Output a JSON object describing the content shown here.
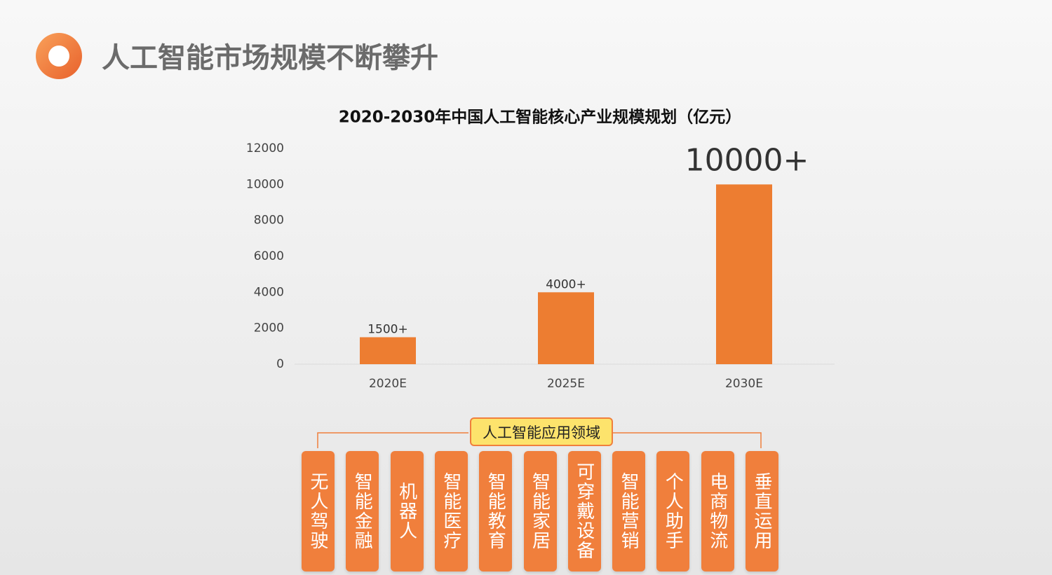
{
  "header": {
    "title": "人工智能市场规模不断攀升"
  },
  "chart_data": {
    "type": "bar",
    "title": "2020-2030年中国人工智能核心产业规模规划（亿元）",
    "categories": [
      "2020E",
      "2025E",
      "2030E"
    ],
    "values": [
      1500,
      4000,
      10000
    ],
    "value_labels": [
      "1500+",
      "4000+",
      "10000+"
    ],
    "color": "#ed7d31",
    "ylim": [
      0,
      12000
    ],
    "yticks": [
      0,
      2000,
      4000,
      6000,
      8000,
      10000,
      12000
    ],
    "grid": false
  },
  "diagram": {
    "label": "人工智能应用领域",
    "items": [
      "无人驾驶",
      "智能金融",
      "机器人",
      "智能医疗",
      "智能教育",
      "智能家居",
      "可穿戴设备",
      "智能营销",
      "个人助手",
      "电商物流",
      "垂直运用"
    ]
  }
}
